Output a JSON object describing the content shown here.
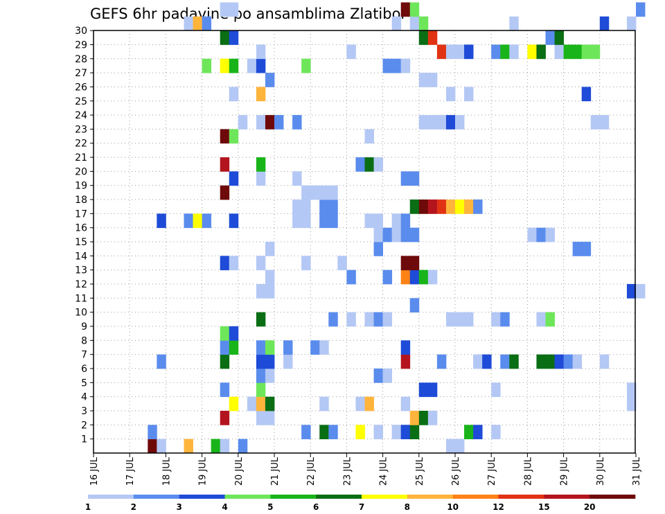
{
  "chart_data": {
    "type": "heatmap",
    "title": "GEFS 6hr padavine po ansamblima Zlatibor",
    "xlabel": "",
    "ylabel": "",
    "x_tick_labels": [
      "16 JUL",
      "17 JUL",
      "18 JUL",
      "19 JUL",
      "20 JUL",
      "21 JUL",
      "22 JUL",
      "23 JUL",
      "24 JUL",
      "25 JUL",
      "26 JUL",
      "27 JUL",
      "28 JUL",
      "29 JUL",
      "30 JUL",
      "31 JUL"
    ],
    "y_tick_labels": [
      "1",
      "2",
      "3",
      "4",
      "5",
      "6",
      "7",
      "8",
      "9",
      "10",
      "11",
      "12",
      "13",
      "14",
      "15",
      "16",
      "17",
      "18",
      "19",
      "20",
      "21",
      "22",
      "23",
      "24",
      "25",
      "26",
      "27",
      "28",
      "29",
      "30"
    ],
    "x_unit": "6-hour step starting 16 JUL 00Z",
    "ylim": [
      0,
      30
    ],
    "grid": true,
    "colorbar": {
      "labels": [
        "1",
        "2",
        "3",
        "4",
        "5",
        "6",
        "7",
        "8",
        "10",
        "12",
        "15",
        "20"
      ],
      "colors": [
        "#b4c8f5",
        "#5a8ced",
        "#1e4bd7",
        "#6ee65a",
        "#19b419",
        "#0a6e14",
        "#ffff00",
        "#ffb43c",
        "#ff8214",
        "#e13214",
        "#b4141e",
        "#6e0a0a"
      ]
    },
    "cells": [
      {
        "member": 0,
        "step": 6,
        "class": 12
      },
      {
        "member": 0,
        "step": 7,
        "class": 1
      },
      {
        "member": 0,
        "step": 10,
        "class": 8
      },
      {
        "member": 0,
        "step": 13,
        "class": 5
      },
      {
        "member": 0,
        "step": 14,
        "class": 1
      },
      {
        "member": 0,
        "step": 16,
        "class": 2
      },
      {
        "member": 0,
        "step": 39,
        "class": 1
      },
      {
        "member": 0,
        "step": 40,
        "class": 1
      },
      {
        "member": 1,
        "step": 6,
        "class": 2
      },
      {
        "member": 1,
        "step": 23,
        "class": 2
      },
      {
        "member": 1,
        "step": 25,
        "class": 6
      },
      {
        "member": 1,
        "step": 26,
        "class": 2
      },
      {
        "member": 1,
        "step": 29,
        "class": 7
      },
      {
        "member": 1,
        "step": 31,
        "class": 1
      },
      {
        "member": 1,
        "step": 33,
        "class": 1
      },
      {
        "member": 1,
        "step": 34,
        "class": 3
      },
      {
        "member": 1,
        "step": 35,
        "class": 6
      },
      {
        "member": 1,
        "step": 41,
        "class": 5
      },
      {
        "member": 1,
        "step": 42,
        "class": 3
      },
      {
        "member": 1,
        "step": 44,
        "class": 1
      },
      {
        "member": 2,
        "step": 14,
        "class": 11
      },
      {
        "member": 2,
        "step": 18,
        "class": 1
      },
      {
        "member": 2,
        "step": 19,
        "class": 1
      },
      {
        "member": 2,
        "step": 35,
        "class": 8
      },
      {
        "member": 2,
        "step": 36,
        "class": 6
      },
      {
        "member": 2,
        "step": 37,
        "class": 1
      },
      {
        "member": 3,
        "step": 15,
        "class": 7
      },
      {
        "member": 3,
        "step": 17,
        "class": 1
      },
      {
        "member": 3,
        "step": 18,
        "class": 8
      },
      {
        "member": 3,
        "step": 19,
        "class": 6
      },
      {
        "member": 3,
        "step": 25,
        "class": 1
      },
      {
        "member": 3,
        "step": 29,
        "class": 1
      },
      {
        "member": 3,
        "step": 30,
        "class": 8
      },
      {
        "member": 3,
        "step": 34,
        "class": 1
      },
      {
        "member": 3,
        "step": 59,
        "class": 1
      },
      {
        "member": 4,
        "step": 14,
        "class": 2
      },
      {
        "member": 4,
        "step": 18,
        "class": 4
      },
      {
        "member": 4,
        "step": 36,
        "class": 3
      },
      {
        "member": 4,
        "step": 37,
        "class": 3
      },
      {
        "member": 4,
        "step": 44,
        "class": 1
      },
      {
        "member": 4,
        "step": 59,
        "class": 1
      },
      {
        "member": 5,
        "step": 18,
        "class": 2
      },
      {
        "member": 5,
        "step": 19,
        "class": 1
      },
      {
        "member": 5,
        "step": 31,
        "class": 2
      },
      {
        "member": 5,
        "step": 32,
        "class": 1
      },
      {
        "member": 6,
        "step": 7,
        "class": 2
      },
      {
        "member": 6,
        "step": 14,
        "class": 6
      },
      {
        "member": 6,
        "step": 18,
        "class": 3
      },
      {
        "member": 6,
        "step": 19,
        "class": 3
      },
      {
        "member": 6,
        "step": 21,
        "class": 1
      },
      {
        "member": 6,
        "step": 34,
        "class": 11
      },
      {
        "member": 6,
        "step": 38,
        "class": 2
      },
      {
        "member": 6,
        "step": 42,
        "class": 1
      },
      {
        "member": 6,
        "step": 43,
        "class": 3
      },
      {
        "member": 6,
        "step": 45,
        "class": 2
      },
      {
        "member": 6,
        "step": 46,
        "class": 6
      },
      {
        "member": 6,
        "step": 49,
        "class": 6
      },
      {
        "member": 6,
        "step": 50,
        "class": 6
      },
      {
        "member": 6,
        "step": 51,
        "class": 3
      },
      {
        "member": 6,
        "step": 52,
        "class": 2
      },
      {
        "member": 6,
        "step": 53,
        "class": 1
      },
      {
        "member": 6,
        "step": 56,
        "class": 1
      },
      {
        "member": 7,
        "step": 14,
        "class": 2
      },
      {
        "member": 7,
        "step": 15,
        "class": 5
      },
      {
        "member": 7,
        "step": 18,
        "class": 2
      },
      {
        "member": 7,
        "step": 19,
        "class": 4
      },
      {
        "member": 7,
        "step": 21,
        "class": 2
      },
      {
        "member": 7,
        "step": 24,
        "class": 2
      },
      {
        "member": 7,
        "step": 25,
        "class": 1
      },
      {
        "member": 7,
        "step": 34,
        "class": 3
      },
      {
        "member": 8,
        "step": 14,
        "class": 4
      },
      {
        "member": 8,
        "step": 15,
        "class": 3
      },
      {
        "member": 9,
        "step": 18,
        "class": 6
      },
      {
        "member": 9,
        "step": 26,
        "class": 2
      },
      {
        "member": 9,
        "step": 28,
        "class": 1
      },
      {
        "member": 9,
        "step": 30,
        "class": 1
      },
      {
        "member": 9,
        "step": 31,
        "class": 2
      },
      {
        "member": 9,
        "step": 32,
        "class": 1
      },
      {
        "member": 9,
        "step": 39,
        "class": 1
      },
      {
        "member": 9,
        "step": 40,
        "class": 1
      },
      {
        "member": 9,
        "step": 41,
        "class": 1
      },
      {
        "member": 9,
        "step": 44,
        "class": 1
      },
      {
        "member": 9,
        "step": 45,
        "class": 2
      },
      {
        "member": 9,
        "step": 49,
        "class": 1
      },
      {
        "member": 9,
        "step": 50,
        "class": 4
      },
      {
        "member": 10,
        "step": 35,
        "class": 2
      },
      {
        "member": 11,
        "step": 18,
        "class": 1
      },
      {
        "member": 11,
        "step": 19,
        "class": 1
      },
      {
        "member": 11,
        "step": 59,
        "class": 3
      },
      {
        "member": 11,
        "step": 60,
        "class": 1
      },
      {
        "member": 12,
        "step": 19,
        "class": 1
      },
      {
        "member": 12,
        "step": 28,
        "class": 2
      },
      {
        "member": 12,
        "step": 32,
        "class": 2
      },
      {
        "member": 12,
        "step": 34,
        "class": 9
      },
      {
        "member": 12,
        "step": 35,
        "class": 3
      },
      {
        "member": 12,
        "step": 36,
        "class": 5
      },
      {
        "member": 12,
        "step": 37,
        "class": 1
      },
      {
        "member": 13,
        "step": 14,
        "class": 3
      },
      {
        "member": 13,
        "step": 15,
        "class": 1
      },
      {
        "member": 13,
        "step": 18,
        "class": 1
      },
      {
        "member": 13,
        "step": 23,
        "class": 1
      },
      {
        "member": 13,
        "step": 27,
        "class": 1
      },
      {
        "member": 13,
        "step": 34,
        "class": 12
      },
      {
        "member": 13,
        "step": 35,
        "class": 12
      },
      {
        "member": 14,
        "step": 19,
        "class": 1
      },
      {
        "member": 14,
        "step": 31,
        "class": 2
      },
      {
        "member": 14,
        "step": 53,
        "class": 2
      },
      {
        "member": 14,
        "step": 54,
        "class": 2
      },
      {
        "member": 15,
        "step": 31,
        "class": 1
      },
      {
        "member": 15,
        "step": 32,
        "class": 2
      },
      {
        "member": 15,
        "step": 33,
        "class": 1
      },
      {
        "member": 15,
        "step": 34,
        "class": 2
      },
      {
        "member": 15,
        "step": 35,
        "class": 2
      },
      {
        "member": 15,
        "step": 48,
        "class": 1
      },
      {
        "member": 15,
        "step": 49,
        "class": 2
      },
      {
        "member": 15,
        "step": 50,
        "class": 1
      },
      {
        "member": 16,
        "step": 7,
        "class": 3
      },
      {
        "member": 16,
        "step": 10,
        "class": 2
      },
      {
        "member": 16,
        "step": 11,
        "class": 7
      },
      {
        "member": 16,
        "step": 12,
        "class": 2
      },
      {
        "member": 16,
        "step": 15,
        "class": 3
      },
      {
        "member": 16,
        "step": 22,
        "class": 1
      },
      {
        "member": 16,
        "step": 23,
        "class": 1
      },
      {
        "member": 16,
        "step": 25,
        "class": 2
      },
      {
        "member": 16,
        "step": 26,
        "class": 2
      },
      {
        "member": 16,
        "step": 30,
        "class": 1
      },
      {
        "member": 16,
        "step": 31,
        "class": 1
      },
      {
        "member": 16,
        "step": 33,
        "class": 1
      },
      {
        "member": 16,
        "step": 34,
        "class": 2
      },
      {
        "member": 17,
        "step": 22,
        "class": 1
      },
      {
        "member": 17,
        "step": 23,
        "class": 1
      },
      {
        "member": 17,
        "step": 25,
        "class": 2
      },
      {
        "member": 17,
        "step": 26,
        "class": 2
      },
      {
        "member": 17,
        "step": 35,
        "class": 6
      },
      {
        "member": 17,
        "step": 36,
        "class": 12
      },
      {
        "member": 17,
        "step": 37,
        "class": 11
      },
      {
        "member": 17,
        "step": 38,
        "class": 10
      },
      {
        "member": 17,
        "step": 39,
        "class": 8
      },
      {
        "member": 17,
        "step": 40,
        "class": 7
      },
      {
        "member": 17,
        "step": 41,
        "class": 8
      },
      {
        "member": 17,
        "step": 42,
        "class": 2
      },
      {
        "member": 18,
        "step": 14,
        "class": 12
      },
      {
        "member": 18,
        "step": 23,
        "class": 1
      },
      {
        "member": 18,
        "step": 24,
        "class": 1
      },
      {
        "member": 18,
        "step": 25,
        "class": 1
      },
      {
        "member": 18,
        "step": 26,
        "class": 1
      },
      {
        "member": 19,
        "step": 15,
        "class": 3
      },
      {
        "member": 19,
        "step": 18,
        "class": 1
      },
      {
        "member": 19,
        "step": 22,
        "class": 1
      },
      {
        "member": 19,
        "step": 34,
        "class": 2
      },
      {
        "member": 19,
        "step": 35,
        "class": 2
      },
      {
        "member": 20,
        "step": 14,
        "class": 11
      },
      {
        "member": 20,
        "step": 18,
        "class": 5
      },
      {
        "member": 20,
        "step": 29,
        "class": 2
      },
      {
        "member": 20,
        "step": 30,
        "class": 6
      },
      {
        "member": 20,
        "step": 31,
        "class": 1
      },
      {
        "member": 22,
        "step": 14,
        "class": 12
      },
      {
        "member": 22,
        "step": 15,
        "class": 4
      },
      {
        "member": 22,
        "step": 30,
        "class": 1
      },
      {
        "member": 23,
        "step": 16,
        "class": 1
      },
      {
        "member": 23,
        "step": 18,
        "class": 1
      },
      {
        "member": 23,
        "step": 19,
        "class": 12
      },
      {
        "member": 23,
        "step": 20,
        "class": 2
      },
      {
        "member": 23,
        "step": 22,
        "class": 2
      },
      {
        "member": 23,
        "step": 36,
        "class": 1
      },
      {
        "member": 23,
        "step": 37,
        "class": 1
      },
      {
        "member": 23,
        "step": 38,
        "class": 1
      },
      {
        "member": 23,
        "step": 39,
        "class": 3
      },
      {
        "member": 23,
        "step": 40,
        "class": 1
      },
      {
        "member": 23,
        "step": 55,
        "class": 1
      },
      {
        "member": 23,
        "step": 56,
        "class": 1
      },
      {
        "member": 25,
        "step": 15,
        "class": 1
      },
      {
        "member": 25,
        "step": 18,
        "class": 8
      },
      {
        "member": 25,
        "step": 39,
        "class": 1
      },
      {
        "member": 25,
        "step": 41,
        "class": 1
      },
      {
        "member": 25,
        "step": 54,
        "class": 3
      },
      {
        "member": 26,
        "step": 19,
        "class": 2
      },
      {
        "member": 26,
        "step": 36,
        "class": 1
      },
      {
        "member": 26,
        "step": 37,
        "class": 1
      },
      {
        "member": 27,
        "step": 12,
        "class": 4
      },
      {
        "member": 27,
        "step": 14,
        "class": 7
      },
      {
        "member": 27,
        "step": 15,
        "class": 5
      },
      {
        "member": 27,
        "step": 17,
        "class": 1
      },
      {
        "member": 27,
        "step": 18,
        "class": 3
      },
      {
        "member": 27,
        "step": 23,
        "class": 4
      },
      {
        "member": 27,
        "step": 32,
        "class": 2
      },
      {
        "member": 27,
        "step": 33,
        "class": 2
      },
      {
        "member": 27,
        "step": 34,
        "class": 1
      },
      {
        "member": 28,
        "step": 18,
        "class": 1
      },
      {
        "member": 28,
        "step": 28,
        "class": 1
      },
      {
        "member": 28,
        "step": 38,
        "class": 10
      },
      {
        "member": 28,
        "step": 39,
        "class": 1
      },
      {
        "member": 28,
        "step": 40,
        "class": 1
      },
      {
        "member": 28,
        "step": 41,
        "class": 3
      },
      {
        "member": 28,
        "step": 44,
        "class": 2
      },
      {
        "member": 28,
        "step": 45,
        "class": 5
      },
      {
        "member": 28,
        "step": 46,
        "class": 1
      },
      {
        "member": 28,
        "step": 48,
        "class": 7
      },
      {
        "member": 28,
        "step": 49,
        "class": 6
      },
      {
        "member": 28,
        "step": 51,
        "class": 1
      },
      {
        "member": 28,
        "step": 52,
        "class": 5
      },
      {
        "member": 28,
        "step": 53,
        "class": 5
      },
      {
        "member": 28,
        "step": 54,
        "class": 4
      },
      {
        "member": 28,
        "step": 55,
        "class": 4
      },
      {
        "member": 29,
        "step": 14,
        "class": 6
      },
      {
        "member": 29,
        "step": 15,
        "class": 3
      },
      {
        "member": 29,
        "step": 36,
        "class": 6
      },
      {
        "member": 29,
        "step": 37,
        "class": 10
      },
      {
        "member": 29,
        "step": 50,
        "class": 2
      },
      {
        "member": 29,
        "step": 51,
        "class": 6
      },
      {
        "member": 30,
        "step": 10,
        "class": 1
      },
      {
        "member": 30,
        "step": 11,
        "class": 8
      },
      {
        "member": 30,
        "step": 12,
        "class": 2
      },
      {
        "member": 30,
        "step": 33,
        "class": 1
      },
      {
        "member": 30,
        "step": 35,
        "class": 1
      },
      {
        "member": 30,
        "step": 36,
        "class": 4
      },
      {
        "member": 30,
        "step": 46,
        "class": 1
      },
      {
        "member": 30,
        "step": 56,
        "class": 3
      },
      {
        "member": 30,
        "step": 59,
        "class": 1
      },
      {
        "member": 31,
        "step": 14,
        "class": 1
      },
      {
        "member": 31,
        "step": 15,
        "class": 1
      },
      {
        "member": 31,
        "step": 34,
        "class": 12
      },
      {
        "member": 31,
        "step": 35,
        "class": 4
      },
      {
        "member": 31,
        "step": 60,
        "class": 2
      }
    ]
  }
}
